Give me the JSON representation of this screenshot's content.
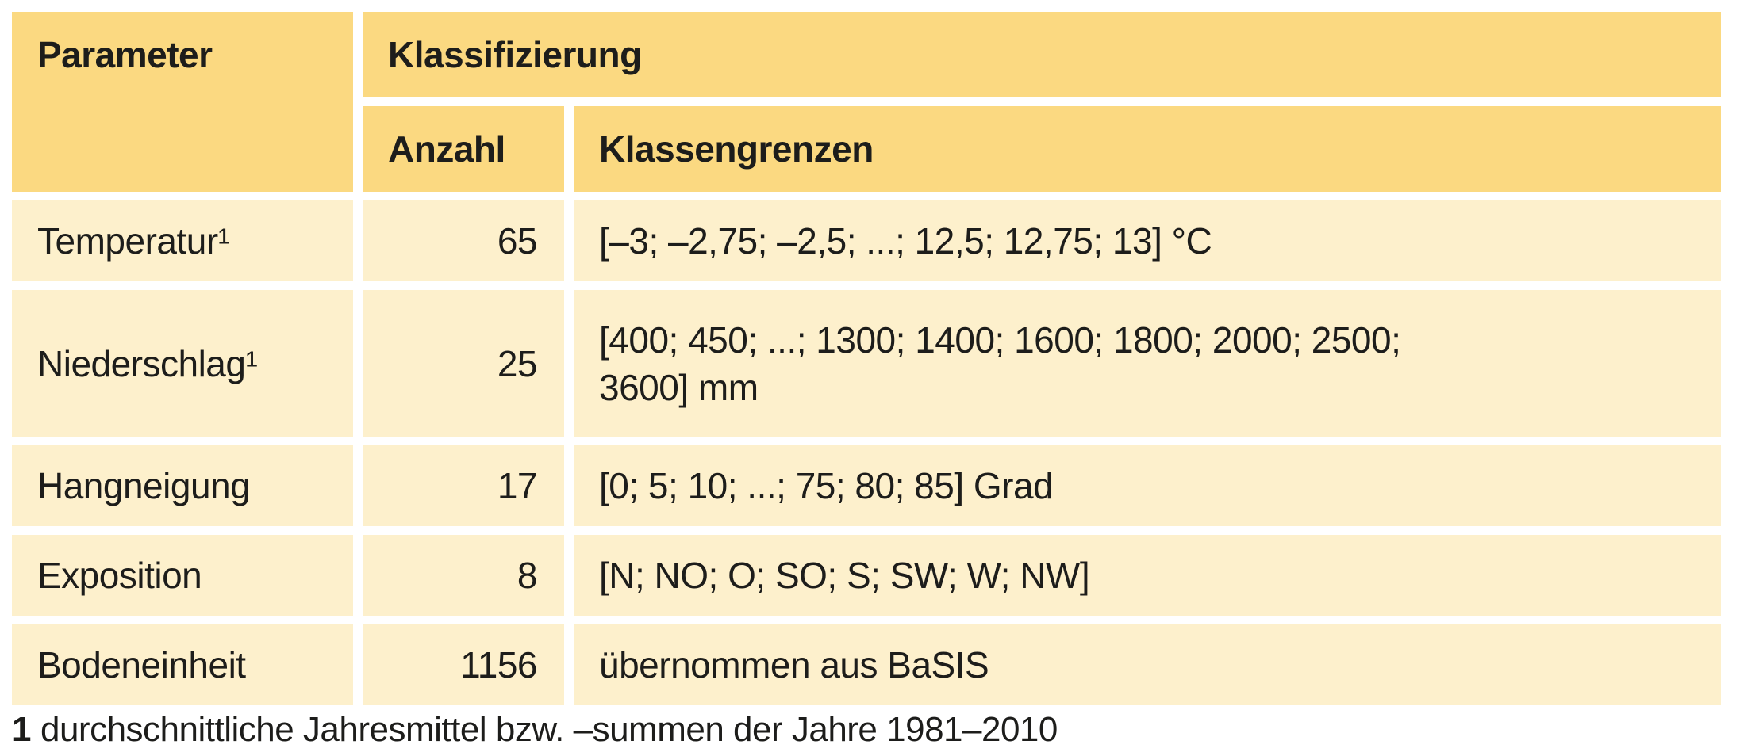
{
  "table": {
    "header": {
      "parameter": "Parameter",
      "klassifizierung": "Klassifizierung",
      "anzahl": "Anzahl",
      "klassengrenzen": "Klassengrenzen"
    },
    "rows": [
      {
        "parameter": "Temperatur¹",
        "anzahl": "65",
        "klassengrenzen": "[–3; –2,75; –2,5; ...; 12,5; 12,75; 13] °C"
      },
      {
        "parameter": "Niederschlag¹",
        "anzahl": "25",
        "klassengrenzen": "[400; 450; ...; 1300; 1400; 1600; 1800; 2000; 2500;\n3600] mm"
      },
      {
        "parameter": "Hangneigung",
        "anzahl": "17",
        "klassengrenzen": "[0; 5; 10; ...; 75; 80; 85] Grad"
      },
      {
        "parameter": "Exposition",
        "anzahl": "8",
        "klassengrenzen": "[N; NO; O; SO; S; SW; W; NW]"
      },
      {
        "parameter": "Bodeneinheit",
        "anzahl": "1156",
        "klassengrenzen": "übernommen aus BaSIS"
      }
    ],
    "footnote": {
      "marker": "1",
      "text": "durchschnittliche Jahresmittel bzw. –summen der Jahre 1981–2010"
    }
  },
  "colors": {
    "header_bg": "#fbd981",
    "row_bg": "#fdf0cc",
    "text": "#1d1d1b",
    "page_bg": "#ffffff"
  }
}
